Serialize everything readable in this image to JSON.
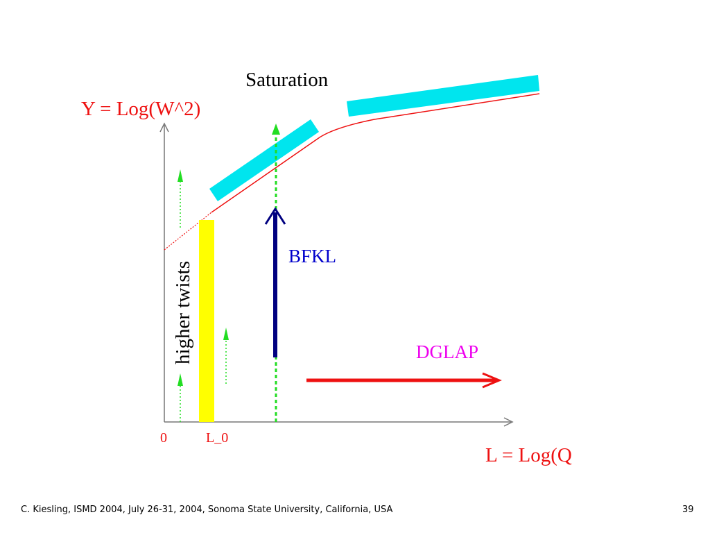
{
  "diagram": {
    "title": "Saturation",
    "y_axis_label": "Y = Log(W^2)",
    "x_axis_label": "L = Log(Q",
    "origin_label": "0",
    "l0_label": "L_0",
    "bfkl_label": "BFKL",
    "dglap_label": "DGLAP",
    "higher_twists_label": "higher twists"
  },
  "footer": {
    "citation": "C. Kiesling, ISMD 2004, July 26-31, 2004, Sonoma State University, California, USA",
    "page_number": "39"
  },
  "colors": {
    "red": "#ee1111",
    "cyan": "#00e5ee",
    "yellow": "#ffff00",
    "green": "#22dd22",
    "navy": "#000080",
    "magenta": "#ee00ee",
    "axis": "#777777"
  }
}
